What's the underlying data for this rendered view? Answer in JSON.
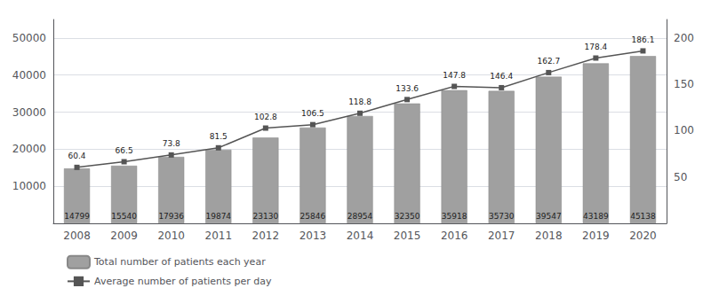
{
  "chart_data": {
    "type": "bar",
    "categories": [
      "2008",
      "2009",
      "2010",
      "2011",
      "2012",
      "2013",
      "2014",
      "2015",
      "2016",
      "2017",
      "2018",
      "2019",
      "2020"
    ],
    "series": [
      {
        "name": "Total number of patients each year",
        "type": "bar",
        "color": "#a0a0a0",
        "values": [
          14799,
          15540,
          17936,
          19874,
          23130,
          25846,
          28954,
          32350,
          35918,
          35730,
          39547,
          43189,
          45138
        ]
      },
      {
        "name": "Average number of patients per day",
        "type": "line",
        "axis": "y2",
        "color": "#555555",
        "marker": "square",
        "values": [
          60.4,
          66.5,
          73.8,
          81.5,
          102.8,
          106.5,
          118.8,
          133.6,
          147.8,
          146.4,
          162.7,
          178.4,
          186.1
        ]
      }
    ],
    "ylim": [
      0,
      55000
    ],
    "yticks": [
      10000,
      20000,
      30000,
      40000,
      50000
    ],
    "y2lim": [
      0,
      220
    ],
    "y2ticks": [
      50,
      100,
      150,
      200
    ],
    "grid": true,
    "legend": "lower left",
    "data_labels": true
  }
}
